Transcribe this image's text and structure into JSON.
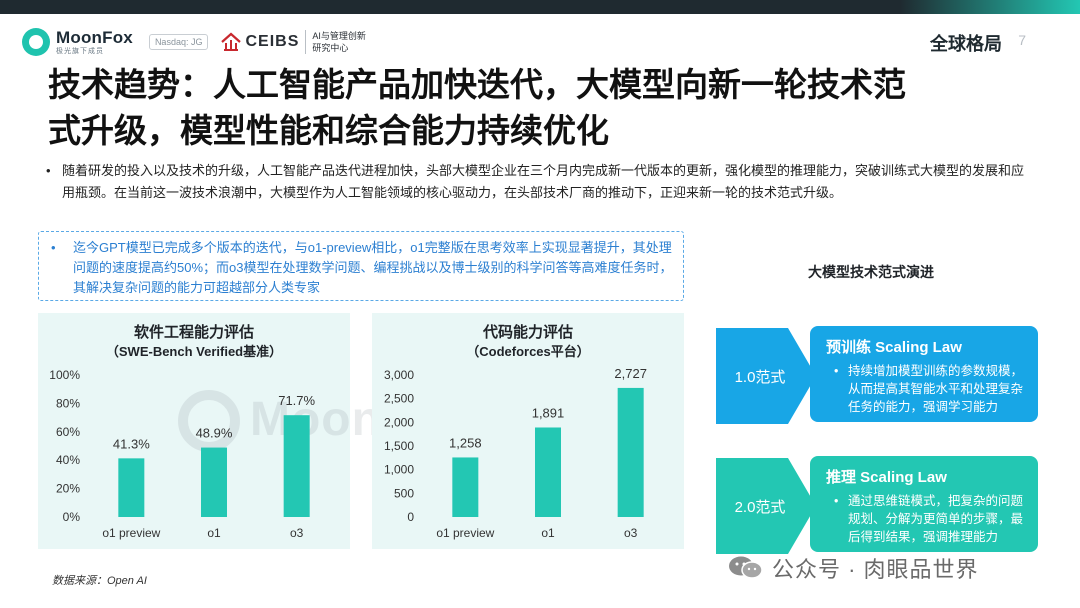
{
  "header": {
    "brand": "MoonFox",
    "brand_sub": "极光旗下成员",
    "nasdaq": "Nasdaq: JG",
    "ceibs": "CEIBS",
    "ceibs_desc_line1": "AI与管理创新",
    "ceibs_desc_line2": "研究中心",
    "section": "全球格局",
    "page": "7"
  },
  "title_line1": "技术趋势：人工智能产品加快迭代，大模型向新一轮技术范",
  "title_line2": "式升级，模型性能和综合能力持续优化",
  "intro": "随着研发的投入以及技术的升级，人工智能产品迭代进程加快，头部大模型企业在三个月内完成新一代版本的更新，强化模型的推理能力，突破训练式大模型的发展和应用瓶颈。在当前这一波技术浪潮中，大模型作为人工智能领域的核心驱动力，在头部技术厂商的推动下，正迎来新一轮的技术范式升级。",
  "note": "迄今GPT模型已完成多个版本的迭代，与o1-preview相比，o1完整版在思考效率上实现显著提升，其处理问题的速度提高约50%；而o3模型在处理数学问题、编程挑战以及博士级别的科学问答等高难度任务时，其解决复杂问题的能力可超越部分人类专家",
  "bullet_char": "•",
  "colors": {
    "bar": "#23c7b3",
    "panel_bg": "#e9f7f6",
    "stage_blue": "#18a6e6",
    "stage_teal": "#23c7b3",
    "note_blue": "#2b7fd1"
  },
  "chart_data": [
    {
      "type": "bar",
      "title": "软件工程能力评估",
      "subtitle": "（SWE-Bench Verified基准）",
      "categories": [
        "o1 preview",
        "o1",
        "o3"
      ],
      "values": [
        41.3,
        48.9,
        71.7
      ],
      "value_labels": [
        "41.3%",
        "48.9%",
        "71.7%"
      ],
      "ylim": [
        0,
        100
      ],
      "yticks": [
        "0%",
        "20%",
        "40%",
        "60%",
        "80%",
        "100%"
      ],
      "grid": false
    },
    {
      "type": "bar",
      "title": "代码能力评估",
      "subtitle": "（Codeforces平台）",
      "categories": [
        "o1 preview",
        "o1",
        "o3"
      ],
      "values": [
        1258,
        1891,
        2727
      ],
      "value_labels": [
        "1,258",
        "1,891",
        "2,727"
      ],
      "ylim": [
        0,
        3000
      ],
      "yticks": [
        "0",
        "500",
        "1,000",
        "1,500",
        "2,000",
        "2,500",
        "3,000"
      ],
      "grid": false
    }
  ],
  "source": "数据来源：Open AI",
  "evolution": {
    "title": "大模型技术范式演进",
    "stages": [
      {
        "label": "1.0范式",
        "card_title": "预训练 Scaling Law",
        "card_body": "持续增加模型训练的参数规模，从而提高其智能水平和处理复杂任务的能力，强调学习能力"
      },
      {
        "label": "2.0范式",
        "card_title": "推理 Scaling Law",
        "card_body": "通过思维链模式，把复杂的问题规划、分解为更简单的步骤，最后得到结果，强调推理能力"
      }
    ]
  },
  "watermark": "MoonFox",
  "wechat": "公众号 · 肉眼品世界"
}
